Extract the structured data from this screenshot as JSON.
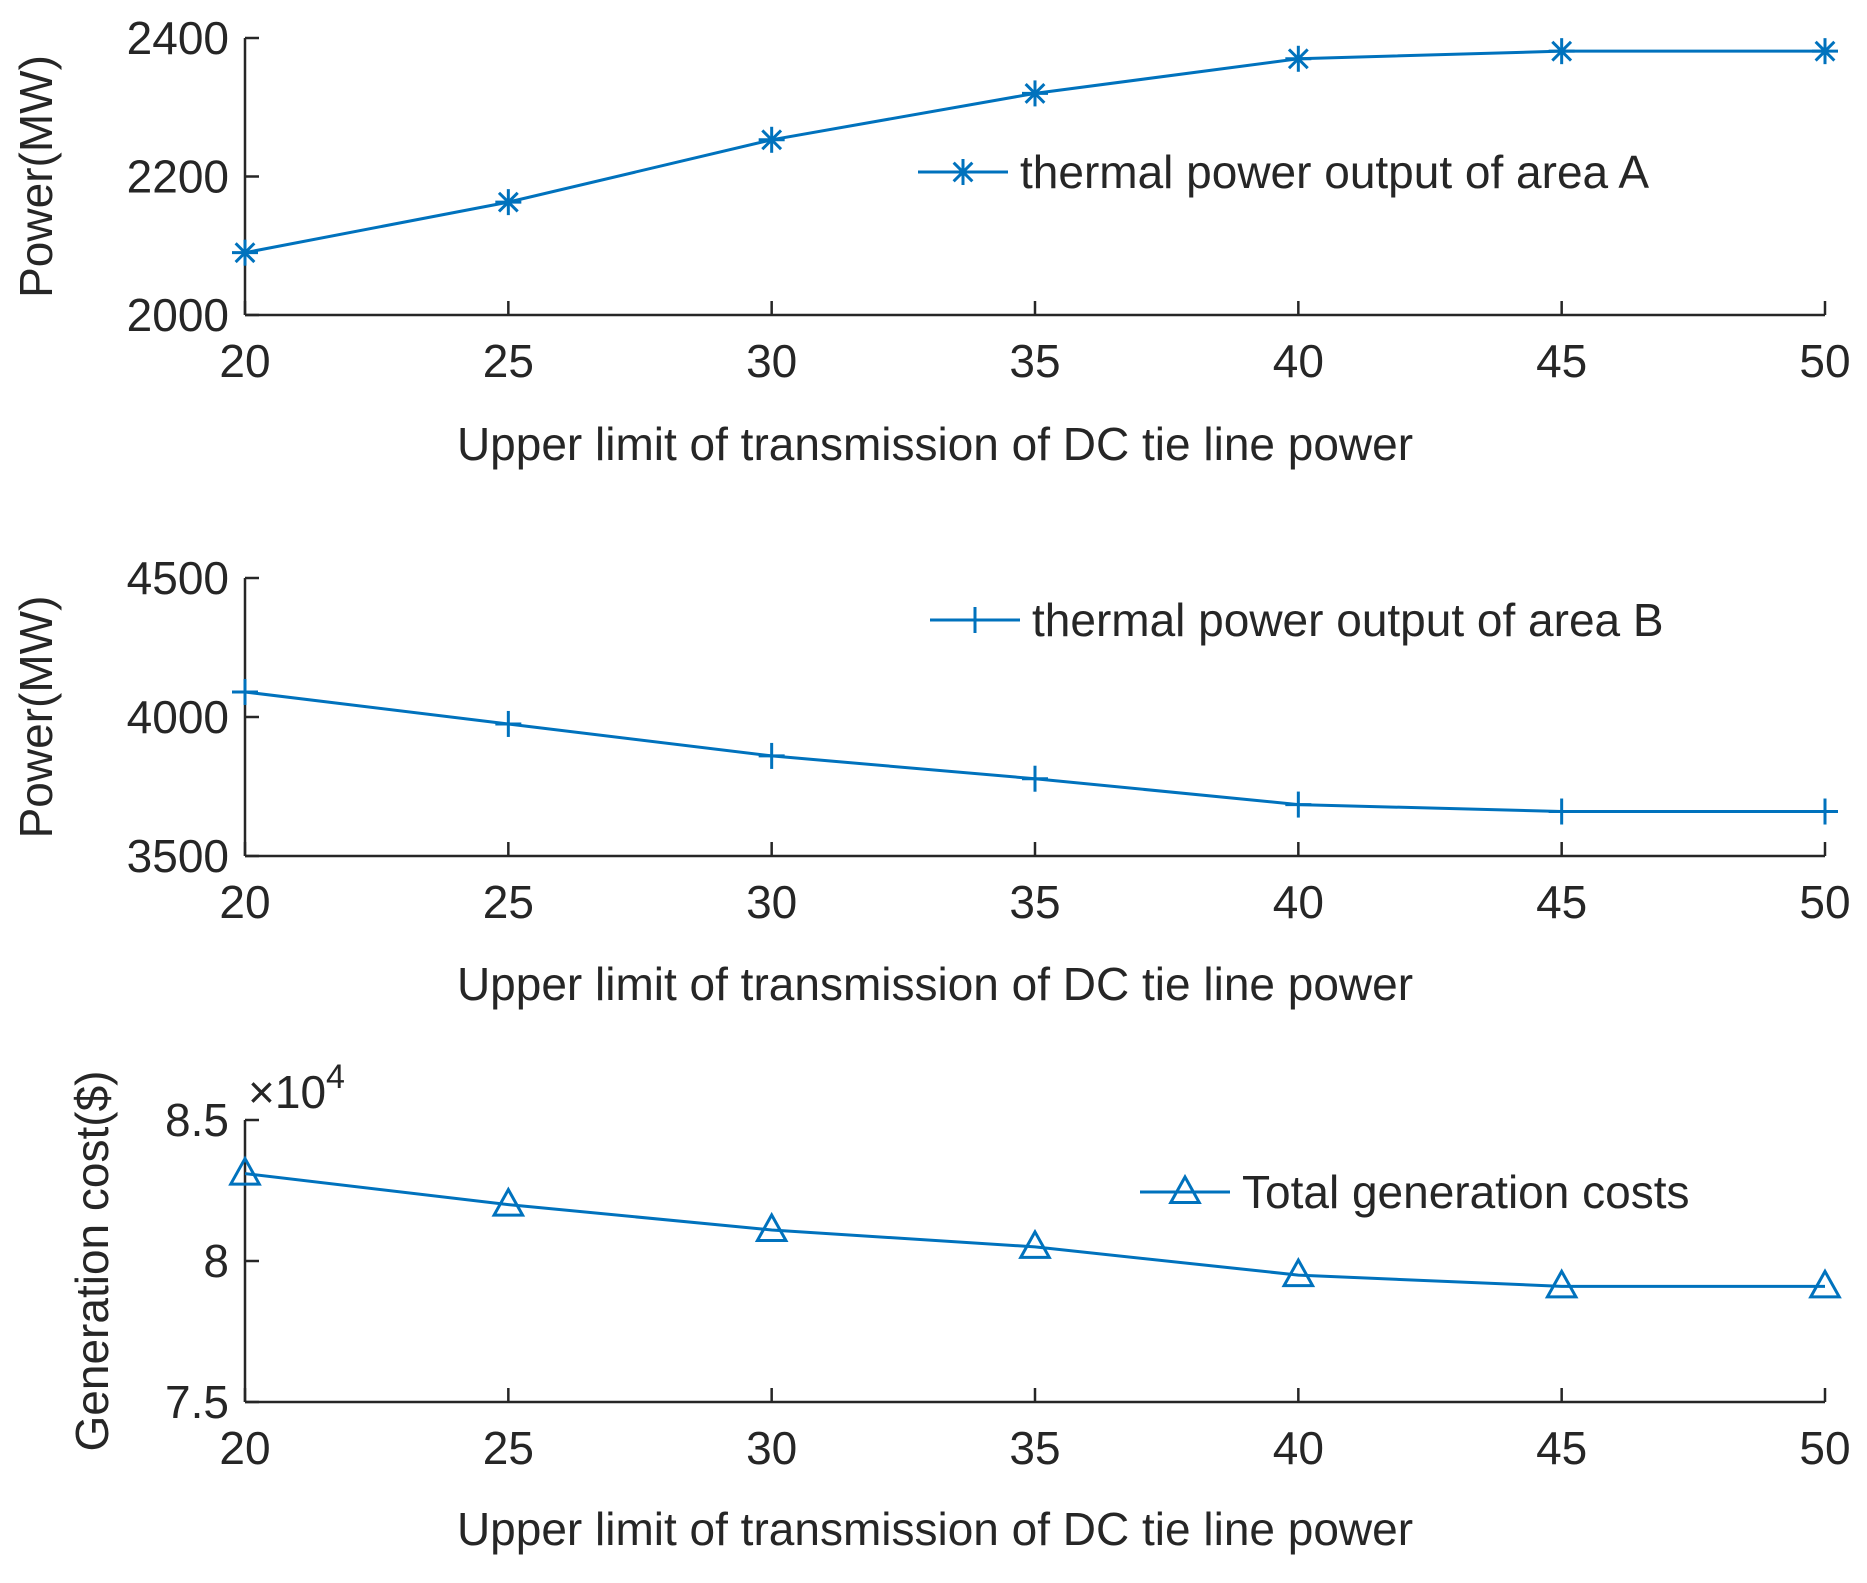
{
  "chart_data": [
    {
      "type": "line",
      "x": [
        20,
        25,
        30,
        35,
        40,
        45,
        50
      ],
      "xlim": [
        20,
        50
      ],
      "xticks": [
        "20",
        "25",
        "30",
        "35",
        "40",
        "45",
        "50"
      ],
      "ylim": [
        2000,
        2400
      ],
      "yticks": [
        "2000",
        "2200",
        "2400"
      ],
      "xlabel": "Upper limit of transmission of DC tie line power",
      "ylabel": "Power(MW)",
      "legend_position": "upper-right",
      "grid": false,
      "series": [
        {
          "name": "thermal power output of area A",
          "marker": "asterisk",
          "color": "#0072BD",
          "values": [
            2090,
            2163,
            2253,
            2320,
            2370,
            2381,
            2381
          ]
        }
      ]
    },
    {
      "type": "line",
      "x": [
        20,
        25,
        30,
        35,
        40,
        45,
        50
      ],
      "xlim": [
        20,
        50
      ],
      "xticks": [
        "20",
        "25",
        "30",
        "35",
        "40",
        "45",
        "50"
      ],
      "ylim": [
        3500,
        4500
      ],
      "yticks": [
        "3500",
        "4000",
        "4500"
      ],
      "xlabel": "Upper limit of transmission of DC tie line power",
      "ylabel": "Power(MW)",
      "legend_position": "upper-right",
      "grid": false,
      "series": [
        {
          "name": "thermal power output of area B",
          "marker": "plus",
          "color": "#0072BD",
          "values": [
            4090,
            3975,
            3860,
            3778,
            3685,
            3660,
            3660
          ]
        }
      ]
    },
    {
      "type": "line",
      "x": [
        20,
        25,
        30,
        35,
        40,
        45,
        50
      ],
      "xlim": [
        20,
        50
      ],
      "xticks": [
        "20",
        "25",
        "30",
        "35",
        "40",
        "45",
        "50"
      ],
      "ylim": [
        7.5,
        8.5
      ],
      "yticks": [
        "7.5",
        "8",
        "8.5"
      ],
      "y_exponent": "×10",
      "y_exponent_power": "4",
      "xlabel": "Upper limit of transmission of DC tie line power",
      "ylabel": "Generation cost($)",
      "legend_position": "upper-right",
      "grid": false,
      "series": [
        {
          "name": "Total generation costs",
          "marker": "triangle",
          "color": "#0072BD",
          "values": [
            8.31,
            8.2,
            8.11,
            8.05,
            7.95,
            7.91,
            7.91
          ]
        }
      ]
    }
  ]
}
